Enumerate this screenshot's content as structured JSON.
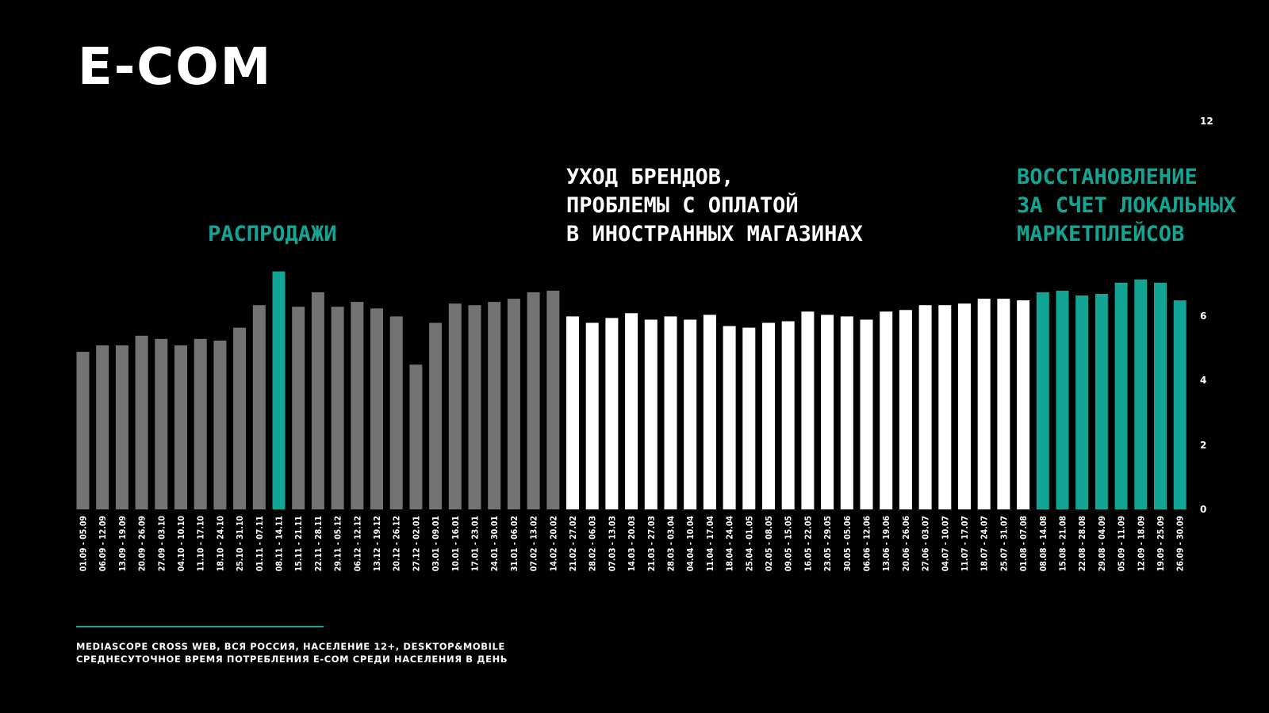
{
  "header": {
    "title": "E-COM"
  },
  "annotations": {
    "sale": "РАСПРОДАЖИ",
    "brand_exit": "УХОД БРЕНДОВ,\nПРОБЛЕМЫ С ОПЛАТОЙ\nВ ИНОСТРАННЫХ МАГАЗИНАХ",
    "recovery": "ВОССТАНОВЛЕНИЕ\nЗА СЧЕТ ЛОКАЛЬНЫХ\nМАРКЕТПЛЕЙСОВ"
  },
  "colors": {
    "grey": "#737373",
    "white": "#ffffff",
    "teal": "#12a593",
    "background": "#000000"
  },
  "chart_data": {
    "type": "bar",
    "title": "",
    "xlabel": "",
    "ylabel": "",
    "ylim": [
      0,
      12
    ],
    "yticks": [
      0,
      2,
      4,
      6,
      12
    ],
    "grid": false,
    "categories": [
      "01.09 - 05.09",
      "06.09 - 12.09",
      "13.09 - 19.09",
      "20.09 - 26.09",
      "27.09 - 03.10",
      "04.10 - 10.10",
      "11.10 - 17.10",
      "18.10 - 24.10",
      "25.10 - 31.10",
      "01.11 - 07.11",
      "08.11 - 14.11",
      "15.11 - 21.11",
      "22.11 - 28.11",
      "29.11 - 05.12",
      "06.12 - 12.12",
      "13.12 - 19.12",
      "20.12 - 26.12",
      "27.12 - 02.01",
      "03.01 - 09.01",
      "10.01 - 16.01",
      "17.01 - 23.01",
      "24.01 - 30.01",
      "31.01 - 06.02",
      "07.02 - 13.02",
      "14.02 - 20.02",
      "21.02 - 27.02",
      "28.02 - 06.03",
      "07.03 - 13.03",
      "14.03 - 20.03",
      "21.03 - 27.03",
      "28.03 - 03.04",
      "04.04 - 10.04",
      "11.04 - 17.04",
      "18.04 - 24.04",
      "25.04 - 01.05",
      "02.05 - 08.05",
      "09.05 - 15.05",
      "16.05 - 22.05",
      "23.05 - 29.05",
      "30.05 - 05.06",
      "06.06 - 12.06",
      "13.06 - 19.06",
      "20.06 - 26.06",
      "27.06 - 03.07",
      "04.07 - 10.07",
      "11.07 - 17.07",
      "18.07 - 24.07",
      "25.07 - 31.07",
      "01.08 - 07.08",
      "08.08 - 14.08",
      "15.08 - 21.08",
      "22.08 - 28.08",
      "29.08 - 04.09",
      "05.09 - 11.09",
      "12.09 - 18.09",
      "19.09 - 25.09",
      "26.09 - 30.09"
    ],
    "values": [
      4.9,
      5.1,
      5.1,
      5.4,
      5.3,
      5.1,
      5.3,
      5.25,
      5.65,
      6.35,
      7.4,
      6.3,
      6.75,
      6.3,
      6.45,
      6.25,
      6.0,
      4.5,
      5.8,
      6.4,
      6.35,
      6.45,
      6.55,
      6.75,
      6.8,
      6.0,
      5.8,
      5.95,
      6.1,
      5.9,
      6.0,
      5.9,
      6.05,
      5.7,
      5.65,
      5.8,
      5.85,
      6.15,
      6.05,
      6.0,
      5.9,
      6.15,
      6.2,
      6.35,
      6.35,
      6.4,
      6.55,
      6.55,
      6.5,
      6.75,
      6.8,
      6.65,
      6.7,
      7.05,
      7.15,
      7.05,
      6.5
    ],
    "highlight_index": 10,
    "periods": [
      {
        "from": 0,
        "to": 24,
        "color": "#737373"
      },
      {
        "from": 25,
        "to": 48,
        "color": "#ffffff"
      },
      {
        "from": 49,
        "to": 56,
        "color": "#12a593"
      }
    ]
  },
  "footer": {
    "source_line1": "MEDIASCOPE CROSS WEB, ВСЯ РОССИЯ, НАСЕЛЕНИЕ 12+, DESKTOP&MOBILE",
    "source_line2": "СРЕДНЕСУТОЧНОЕ ВРЕМЯ ПОТРЕБЛЕНИЯ E-COM СРЕДИ НАСЕЛЕНИЯ В ДЕНЬ"
  }
}
